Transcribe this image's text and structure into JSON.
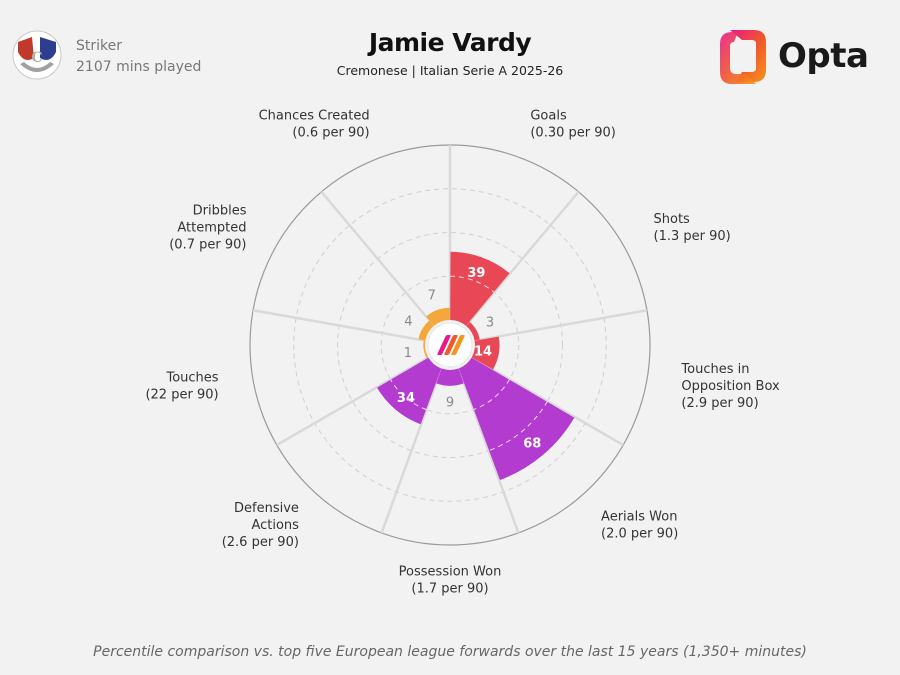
{
  "header": {
    "position": "Striker",
    "minutes": "2107 mins played",
    "player": "Jamie Vardy",
    "subtitle": "Cremonese | Italian Serie A 2025-26",
    "brand": "Opta"
  },
  "footnote": "Percentile comparison vs. top five European league forwards over the last 15 years (1,350+ minutes)",
  "colors": {
    "attacking": "#e84855",
    "physical": "#b43bd0",
    "creative": "#f4a73b",
    "grid": "#cfcfcf",
    "background": "#f2f2f2"
  },
  "chart_data": {
    "type": "radial-bar",
    "range": [
      0,
      100
    ],
    "metrics": [
      {
        "label": [
          "Goals",
          "(0.30 per 90)"
        ],
        "value": 39,
        "group": "attacking"
      },
      {
        "label": [
          "Shots",
          "(1.3 per 90)"
        ],
        "value": 3,
        "group": "attacking"
      },
      {
        "label": [
          "Touches in",
          "Opposition Box",
          "(2.9 per 90)"
        ],
        "value": 14,
        "group": "attacking"
      },
      {
        "label": [
          "Aerials Won",
          "(2.0 per 90)"
        ],
        "value": 68,
        "group": "physical"
      },
      {
        "label": [
          "Possession Won",
          "(1.7 per 90)"
        ],
        "value": 9,
        "group": "physical"
      },
      {
        "label": [
          "Defensive",
          "Actions",
          "(2.6 per 90)"
        ],
        "value": 34,
        "group": "physical"
      },
      {
        "label": [
          "Touches",
          "(22 per 90)"
        ],
        "value": 1,
        "group": "creative"
      },
      {
        "label": [
          "Dribbles",
          "Attempted",
          "(0.7 per 90)"
        ],
        "value": 4,
        "group": "creative"
      },
      {
        "label": [
          "Chances Created",
          "(0.6 per 90)"
        ],
        "value": 7,
        "group": "creative"
      }
    ]
  }
}
